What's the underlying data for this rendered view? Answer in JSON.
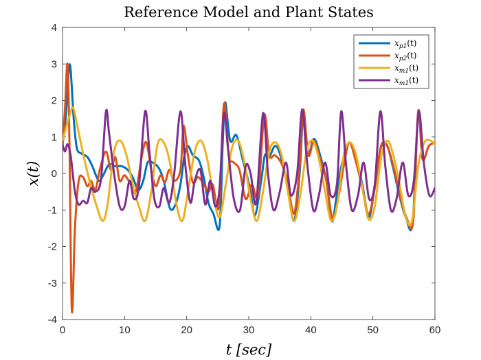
{
  "chart_data": {
    "type": "line",
    "title": "Reference Model and Plant States",
    "xlabel": "t  [sec]",
    "ylabel": "x(t)",
    "xlim": [
      0,
      60
    ],
    "ylim": [
      -4,
      4
    ],
    "xticks": [
      0,
      10,
      20,
      30,
      40,
      50,
      60
    ],
    "yticks": [
      -4,
      -3,
      -2,
      -1,
      0,
      1,
      2,
      3,
      4
    ],
    "grid": false,
    "legend_position": "top-right",
    "series": [
      {
        "name": "x_p1(t)",
        "color": "#0072BD",
        "points": [
          [
            0,
            0.8
          ],
          [
            0.5,
            1.5
          ],
          [
            1,
            2.8
          ],
          [
            1.3,
            2.85
          ],
          [
            1.8,
            1.5
          ],
          [
            2.3,
            0.7
          ],
          [
            3,
            0.55
          ],
          [
            4,
            0.45
          ],
          [
            4.8,
            0.2
          ],
          [
            5.5,
            -0.1
          ],
          [
            6,
            -0.2
          ],
          [
            6.7,
            0.0
          ],
          [
            7.5,
            0.25
          ],
          [
            8.5,
            0.2
          ],
          [
            9.5,
            0.2
          ],
          [
            10.5,
            0.1
          ],
          [
            11.3,
            -0.1
          ],
          [
            12.2,
            -0.45
          ],
          [
            13,
            -0.2
          ],
          [
            13.7,
            0.3
          ],
          [
            14.5,
            0.3
          ],
          [
            15.5,
            0.15
          ],
          [
            16.3,
            -0.2
          ],
          [
            17.3,
            -0.95
          ],
          [
            18.2,
            -0.85
          ],
          [
            19,
            -0.3
          ],
          [
            19.6,
            0.45
          ],
          [
            20.2,
            0.75
          ],
          [
            21,
            0.5
          ],
          [
            22,
            0.35
          ],
          [
            22.8,
            -0.15
          ],
          [
            23.5,
            -0.8
          ],
          [
            24.3,
            -1.1
          ],
          [
            25.3,
            -1.45
          ],
          [
            25.8,
            0.8
          ],
          [
            26.2,
            1.95
          ],
          [
            27,
            0.9
          ],
          [
            28,
            1.05
          ],
          [
            29,
            0.4
          ],
          [
            30.2,
            -0.4
          ],
          [
            31,
            -1.15
          ],
          [
            32,
            -0.2
          ],
          [
            32.6,
            0.5
          ],
          [
            33.3,
            0.45
          ],
          [
            34.2,
            0.75
          ],
          [
            35,
            0.55
          ],
          [
            36.2,
            -0.3
          ],
          [
            37.3,
            -1.3
          ],
          [
            38.2,
            0.0
          ],
          [
            38.8,
            1.65
          ],
          [
            39.5,
            0.5
          ],
          [
            40.5,
            0.95
          ],
          [
            41.5,
            0.5
          ],
          [
            42.5,
            -0.2
          ],
          [
            43.4,
            -1.3
          ],
          [
            44,
            -0.8
          ],
          [
            44.8,
            0.1
          ],
          [
            45.5,
            0.55
          ],
          [
            46.3,
            0.85
          ],
          [
            47.2,
            0.4
          ],
          [
            48.3,
            -0.3
          ],
          [
            49.3,
            -1.2
          ],
          [
            50.2,
            -0.5
          ],
          [
            51.2,
            0.65
          ],
          [
            52.2,
            0.8
          ],
          [
            53.2,
            0.2
          ],
          [
            54.2,
            -0.55
          ],
          [
            55.3,
            -1.2
          ],
          [
            56.4,
            -1.35
          ],
          [
            57.3,
            1.7
          ],
          [
            58,
            0.4
          ],
          [
            59,
            0.75
          ],
          [
            60,
            0.85
          ]
        ]
      },
      {
        "name": "x_p2(t)",
        "color": "#D95319",
        "points": [
          [
            0,
            0.8
          ],
          [
            0.4,
            1.8
          ],
          [
            0.8,
            3.0
          ],
          [
            1.1,
            1.0
          ],
          [
            1.5,
            -3.75
          ],
          [
            2,
            -1.5
          ],
          [
            2.6,
            -0.2
          ],
          [
            3.3,
            -0.1
          ],
          [
            4,
            -0.35
          ],
          [
            4.6,
            -0.2
          ],
          [
            5.3,
            -0.45
          ],
          [
            6,
            0.1
          ],
          [
            7,
            0.6
          ],
          [
            7.8,
            0.1
          ],
          [
            8.5,
            0.45
          ],
          [
            9.2,
            -0.2
          ],
          [
            10,
            -0.05
          ],
          [
            11,
            -0.3
          ],
          [
            11.8,
            -0.5
          ],
          [
            12.8,
            0.5
          ],
          [
            13.5,
            0.85
          ],
          [
            14.3,
            0.1
          ],
          [
            15,
            -0.35
          ],
          [
            15.8,
            -0.05
          ],
          [
            16.5,
            -0.25
          ],
          [
            17.2,
            0.1
          ],
          [
            18,
            -0.2
          ],
          [
            19,
            0.1
          ],
          [
            19.5,
            1.3
          ],
          [
            20.2,
            0.5
          ],
          [
            21,
            -0.25
          ],
          [
            21.8,
            -0.1
          ],
          [
            22.6,
            -0.25
          ],
          [
            23.5,
            -0.5
          ],
          [
            24.2,
            -0.3
          ],
          [
            25.2,
            -0.9
          ],
          [
            26,
            1.9
          ],
          [
            26.8,
            0.5
          ],
          [
            27.6,
            0.3
          ],
          [
            28.5,
            0.1
          ],
          [
            29.5,
            -0.7
          ],
          [
            30.5,
            -0.3
          ],
          [
            31.5,
            -0.6
          ],
          [
            32.5,
            1.6
          ],
          [
            33.3,
            0.5
          ],
          [
            34.2,
            0.5
          ],
          [
            35.2,
            0.3
          ],
          [
            36.2,
            -0.2
          ],
          [
            37.3,
            -1.1
          ],
          [
            38.2,
            0.2
          ],
          [
            38.8,
            1.75
          ],
          [
            39.6,
            0.5
          ],
          [
            40.5,
            0.9
          ],
          [
            41.5,
            0.4
          ],
          [
            42.5,
            -0.2
          ],
          [
            43.5,
            -1.25
          ],
          [
            44.5,
            -0.6
          ],
          [
            45.3,
            0.2
          ],
          [
            46.2,
            0.85
          ],
          [
            47.3,
            0.3
          ],
          [
            48.3,
            -0.4
          ],
          [
            49.3,
            -1.1
          ],
          [
            50.3,
            -0.4
          ],
          [
            51.3,
            0.75
          ],
          [
            52.3,
            0.75
          ],
          [
            53.3,
            0.2
          ],
          [
            54.3,
            -0.55
          ],
          [
            55.4,
            -1.2
          ],
          [
            56.5,
            -1.3
          ],
          [
            57.3,
            1.7
          ],
          [
            58,
            0.4
          ],
          [
            59,
            0.75
          ],
          [
            60,
            0.85
          ]
        ]
      },
      {
        "name": "x_m1(t)",
        "color": "#EDB120",
        "points": [
          [
            0,
            0.9
          ],
          [
            1,
            1.5
          ],
          [
            1.7,
            1.8
          ],
          [
            2.5,
            1.2
          ],
          [
            3.5,
            0.4
          ],
          [
            4.5,
            -0.3
          ],
          [
            5.5,
            -0.9
          ],
          [
            6.5,
            -1.3
          ],
          [
            7.3,
            -0.8
          ],
          [
            8.3,
            0.6
          ],
          [
            9.3,
            0.9
          ],
          [
            10.3,
            0.5
          ],
          [
            11.3,
            -0.3
          ],
          [
            12.3,
            -0.9
          ],
          [
            13.3,
            -1.3
          ],
          [
            14.3,
            -0.5
          ],
          [
            15.3,
            0.8
          ],
          [
            16.3,
            0.85
          ],
          [
            17.3,
            0.3
          ],
          [
            18.3,
            -0.8
          ],
          [
            19.3,
            -1.3
          ],
          [
            20.3,
            -0.4
          ],
          [
            21.3,
            0.6
          ],
          [
            22.3,
            0.9
          ],
          [
            23.3,
            0.4
          ],
          [
            24.3,
            -0.6
          ],
          [
            25.3,
            -1.2
          ],
          [
            26.3,
            -0.3
          ],
          [
            27.3,
            0.7
          ],
          [
            28.3,
            0.9
          ],
          [
            29.3,
            0.3
          ],
          [
            30.3,
            -0.7
          ],
          [
            31.3,
            -1.3
          ],
          [
            32.3,
            -0.5
          ],
          [
            33.3,
            0.6
          ],
          [
            34.3,
            0.85
          ],
          [
            35.3,
            0.5
          ],
          [
            36.3,
            -0.5
          ],
          [
            37.3,
            -1.3
          ],
          [
            38.3,
            -0.6
          ],
          [
            39.3,
            0.6
          ],
          [
            40.3,
            0.9
          ],
          [
            41.3,
            0.4
          ],
          [
            42.3,
            -0.5
          ],
          [
            43.3,
            -1.3
          ],
          [
            44.3,
            -0.8
          ],
          [
            45.3,
            0.5
          ],
          [
            46.3,
            0.85
          ],
          [
            47.3,
            0.5
          ],
          [
            48.3,
            -0.4
          ],
          [
            49.3,
            -1.25
          ],
          [
            50.3,
            -0.9
          ],
          [
            51.3,
            0.4
          ],
          [
            52.3,
            0.9
          ],
          [
            53.3,
            0.5
          ],
          [
            54.3,
            -0.3
          ],
          [
            55.3,
            -1.2
          ],
          [
            56.3,
            -1.3
          ],
          [
            57.3,
            0.2
          ],
          [
            58.3,
            0.85
          ],
          [
            59.3,
            0.9
          ],
          [
            60,
            0.8
          ]
        ]
      },
      {
        "name": "x_m1(t)",
        "color": "#7E2F8E",
        "points": [
          [
            0,
            0.8
          ],
          [
            0.4,
            0.6
          ],
          [
            0.8,
            0.8
          ],
          [
            1.3,
            0.5
          ],
          [
            2,
            -0.5
          ],
          [
            2.6,
            -0.85
          ],
          [
            3.3,
            -0.75
          ],
          [
            4,
            -0.8
          ],
          [
            4.6,
            -0.4
          ],
          [
            5.3,
            -0.5
          ],
          [
            6.2,
            -0.15
          ],
          [
            7,
            1.7
          ],
          [
            7.5,
            1.1
          ],
          [
            8.3,
            0.0
          ],
          [
            9.2,
            -0.9
          ],
          [
            10,
            -0.9
          ],
          [
            10.8,
            -0.2
          ],
          [
            11.5,
            -0.7
          ],
          [
            12.3,
            -0.35
          ],
          [
            13.3,
            1.7
          ],
          [
            14,
            0.6
          ],
          [
            14.8,
            -0.7
          ],
          [
            15.6,
            -0.9
          ],
          [
            16.3,
            -0.4
          ],
          [
            17.2,
            -0.8
          ],
          [
            18,
            0.0
          ],
          [
            19,
            1.7
          ],
          [
            19.8,
            0.2
          ],
          [
            20.6,
            -0.8
          ],
          [
            21.3,
            -0.2
          ],
          [
            22.2,
            0.1
          ],
          [
            23,
            -0.85
          ],
          [
            23.8,
            -0.2
          ],
          [
            24.6,
            -0.9
          ],
          [
            25.3,
            -0.4
          ],
          [
            26,
            1.65
          ],
          [
            26.7,
            0.6
          ],
          [
            27.6,
            -0.7
          ],
          [
            28.6,
            -1.0
          ],
          [
            29.5,
            0.2
          ],
          [
            30.3,
            0.0
          ],
          [
            31.2,
            -0.8
          ],
          [
            32.3,
            1.65
          ],
          [
            33.1,
            0.0
          ],
          [
            34,
            -1.0
          ],
          [
            35,
            -0.5
          ],
          [
            36,
            0.3
          ],
          [
            36.8,
            -0.6
          ],
          [
            37.8,
            0.0
          ],
          [
            38.6,
            1.75
          ],
          [
            39.4,
            0.3
          ],
          [
            40.4,
            -1.0
          ],
          [
            41.3,
            -0.6
          ],
          [
            42.3,
            0.3
          ],
          [
            43.2,
            -0.6
          ],
          [
            44.2,
            -0.3
          ],
          [
            44.9,
            1.7
          ],
          [
            45.7,
            0.2
          ],
          [
            46.6,
            -1.0
          ],
          [
            47.6,
            -0.6
          ],
          [
            48.5,
            0.3
          ],
          [
            49.4,
            -0.7
          ],
          [
            50.3,
            -0.3
          ],
          [
            51.2,
            1.7
          ],
          [
            52,
            0.2
          ],
          [
            52.9,
            -1.0
          ],
          [
            53.8,
            -0.7
          ],
          [
            54.8,
            0.3
          ],
          [
            55.7,
            -0.6
          ],
          [
            56.6,
            -0.2
          ],
          [
            57.4,
            1.7
          ],
          [
            58.2,
            0.3
          ],
          [
            59.1,
            -0.6
          ],
          [
            60,
            -0.4
          ]
        ]
      }
    ]
  },
  "legend": {
    "entries": [
      {
        "base": "x",
        "sub": "p1",
        "arg": "(t)"
      },
      {
        "base": "x",
        "sub": "p2",
        "arg": "(t)"
      },
      {
        "base": "x",
        "sub": "m1",
        "arg": "(t)"
      },
      {
        "base": "x",
        "sub": "m1",
        "arg": "(t)"
      }
    ]
  }
}
